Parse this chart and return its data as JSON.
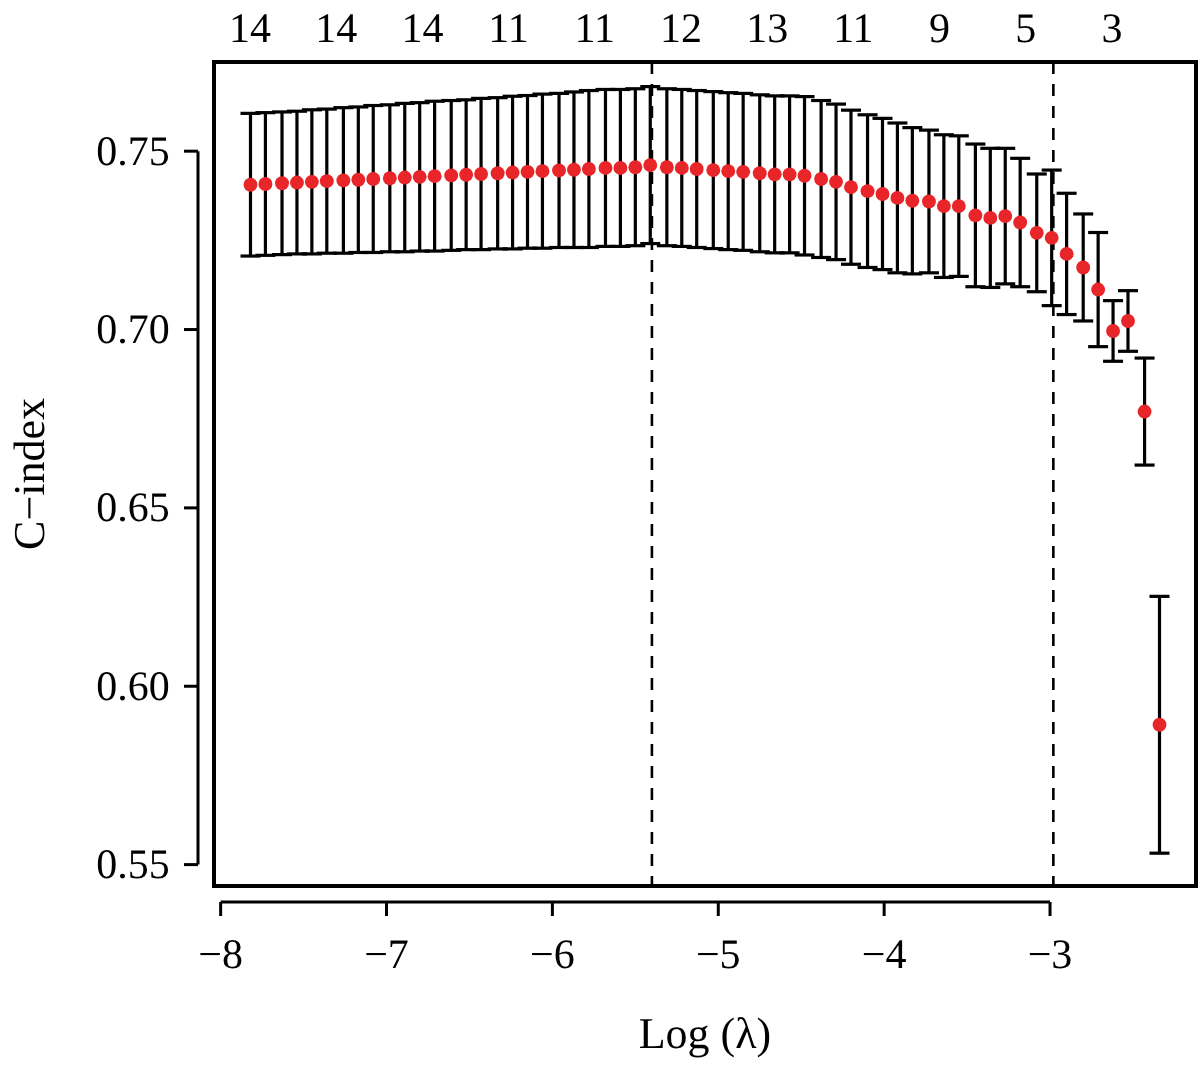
{
  "chart_data": {
    "type": "scatter",
    "xlabel": "Log (λ)",
    "ylabel": "C−index",
    "x": [
      -7.82,
      -7.73,
      -7.63,
      -7.54,
      -7.45,
      -7.36,
      -7.26,
      -7.17,
      -7.08,
      -6.98,
      -6.89,
      -6.8,
      -6.71,
      -6.61,
      -6.52,
      -6.43,
      -6.33,
      -6.24,
      -6.15,
      -6.06,
      -5.96,
      -5.87,
      -5.78,
      -5.68,
      -5.59,
      -5.5,
      -5.41,
      -5.31,
      -5.22,
      -5.13,
      -5.03,
      -4.94,
      -4.85,
      -4.75,
      -4.66,
      -4.57,
      -4.48,
      -4.38,
      -4.29,
      -4.2,
      -4.1,
      -4.01,
      -3.92,
      -3.83,
      -3.73,
      -3.64,
      -3.55,
      -3.45,
      -3.36,
      -3.27,
      -3.18,
      -3.08,
      -2.99,
      -2.9,
      -2.8,
      -2.71,
      -2.62,
      -2.53,
      -2.43,
      -2.34
    ],
    "series": [
      {
        "color": "#e8262a",
        "values": [
          0.7406,
          0.7408,
          0.741,
          0.7412,
          0.7414,
          0.7416,
          0.7418,
          0.742,
          0.7422,
          0.7424,
          0.7426,
          0.7428,
          0.743,
          0.7432,
          0.7434,
          0.7436,
          0.7438,
          0.744,
          0.7442,
          0.7444,
          0.7446,
          0.7448,
          0.745,
          0.7453,
          0.7453,
          0.7455,
          0.7461,
          0.7455,
          0.7453,
          0.745,
          0.7447,
          0.7444,
          0.7442,
          0.7438,
          0.7435,
          0.7435,
          0.7431,
          0.7422,
          0.7414,
          0.7399,
          0.7388,
          0.738,
          0.7369,
          0.7361,
          0.7359,
          0.7346,
          0.7346,
          0.732,
          0.7313,
          0.7318,
          0.73,
          0.7271,
          0.7257,
          0.7212,
          0.7174,
          0.7112,
          0.6996,
          0.7024,
          0.677,
          0.5892
        ],
        "errors": [
          0.02,
          0.02,
          0.02,
          0.02,
          0.0202,
          0.0202,
          0.0204,
          0.0204,
          0.0206,
          0.0206,
          0.0208,
          0.0208,
          0.021,
          0.021,
          0.021,
          0.0212,
          0.0212,
          0.0214,
          0.0214,
          0.0216,
          0.0216,
          0.0218,
          0.022,
          0.022,
          0.022,
          0.022,
          0.022,
          0.022,
          0.022,
          0.022,
          0.022,
          0.022,
          0.022,
          0.022,
          0.022,
          0.022,
          0.0222,
          0.022,
          0.0218,
          0.0216,
          0.0214,
          0.0212,
          0.021,
          0.0205,
          0.02,
          0.02,
          0.0197,
          0.02,
          0.0195,
          0.019,
          0.018,
          0.0165,
          0.019,
          0.017,
          0.015,
          0.016,
          0.0085,
          0.0085,
          0.015,
          0.036
        ]
      }
    ],
    "marker": "circle",
    "grid": false,
    "xlim": [
      -8.04,
      -2.12
    ],
    "ylim": [
      0.544,
      0.775
    ],
    "xticks": [
      {
        "value": -8,
        "label": "−8"
      },
      {
        "value": -7,
        "label": "−7"
      },
      {
        "value": -6,
        "label": "−6"
      },
      {
        "value": -5,
        "label": "−5"
      },
      {
        "value": -4,
        "label": "−4"
      },
      {
        "value": -3,
        "label": "−3"
      }
    ],
    "yticks": [
      {
        "value": 0.55,
        "label": "0.55"
      },
      {
        "value": 0.6,
        "label": "0.60"
      },
      {
        "value": 0.65,
        "label": "0.65"
      },
      {
        "value": 0.7,
        "label": "0.70"
      },
      {
        "value": 0.75,
        "label": "0.75"
      }
    ],
    "annotations": [
      "14",
      "14",
      "14",
      "11",
      "11",
      "12",
      "13",
      "11",
      "9",
      "5",
      "3"
    ],
    "ref_lines": [
      {
        "axis": "x",
        "value": -5.4,
        "line_style": "dashed",
        "color": "#000000"
      },
      {
        "axis": "x",
        "value": -2.98,
        "line_style": "dashed",
        "color": "#000000"
      }
    ]
  }
}
